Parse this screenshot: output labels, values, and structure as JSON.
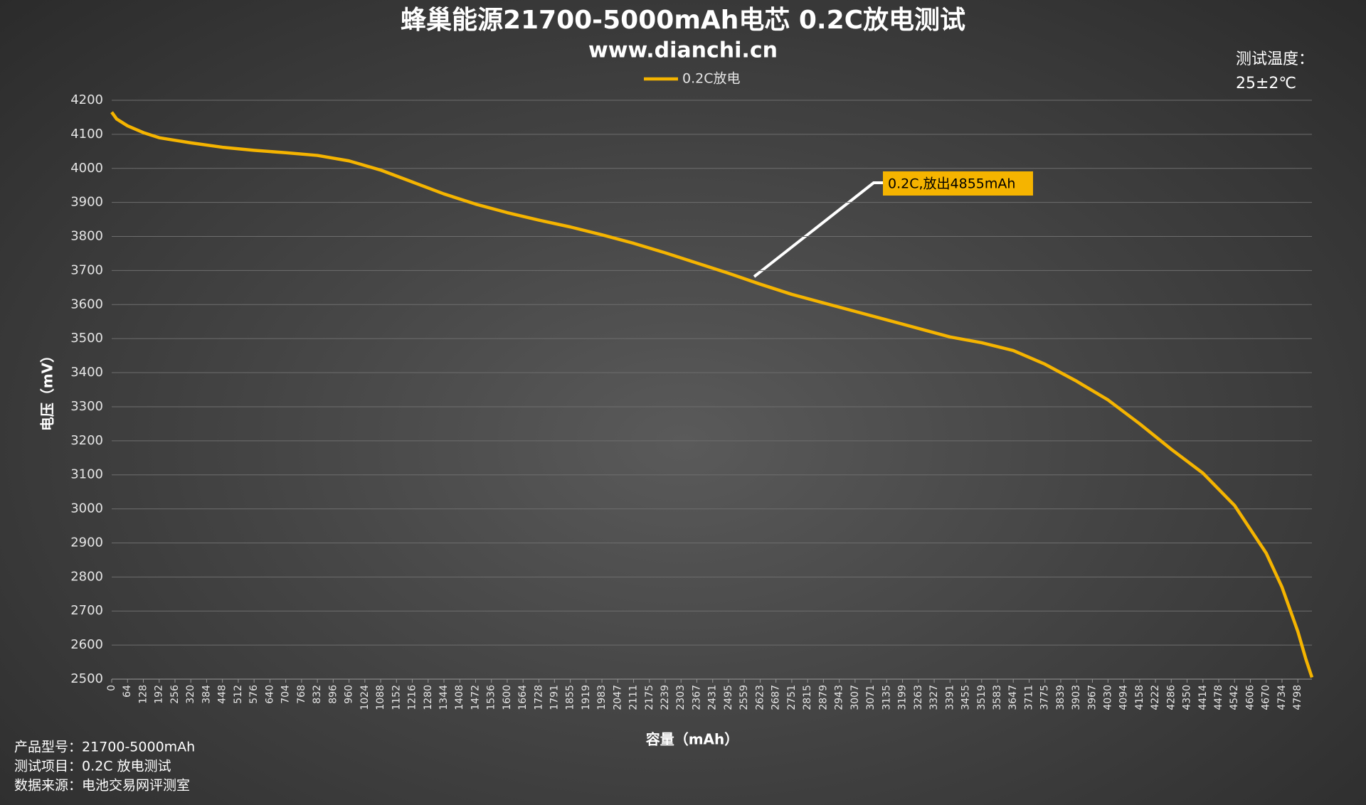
{
  "chart_data": {
    "type": "line",
    "title": "蜂巢能源21700-5000mAh电芯 0.2C放电测试",
    "subtitle": "www.dianchi.cn",
    "temperature_label": "测试温度：",
    "temperature_value": "25±2℃",
    "y_label": "电压（mV）",
    "x_label": "容量（mAh）",
    "annotation": "0.2C,放出4855mAh",
    "notes": [
      "产品型号：21700-5000mAh",
      "测试项目：0.2C 放电测试",
      "数据来源：电池交易网评测室"
    ],
    "legend": "top",
    "grid": true,
    "x": [
      0,
      20,
      64,
      128,
      192,
      320,
      448,
      576,
      704,
      832,
      960,
      1088,
      1216,
      1344,
      1472,
      1600,
      1728,
      1855,
      1983,
      2111,
      2239,
      2367,
      2495,
      2623,
      2751,
      2879,
      3007,
      3135,
      3263,
      3391,
      3519,
      3647,
      3775,
      3903,
      4030,
      4158,
      4286,
      4414,
      4542,
      4670,
      4734,
      4798,
      4830,
      4855
    ],
    "series": [
      {
        "name": "0.2C放电",
        "color": "#f5b400",
        "values": [
          4165,
          4145,
          4125,
          4105,
          4090,
          4075,
          4062,
          4053,
          4046,
          4038,
          4022,
          3995,
          3960,
          3925,
          3895,
          3870,
          3848,
          3828,
          3805,
          3780,
          3752,
          3722,
          3692,
          3660,
          3630,
          3605,
          3580,
          3555,
          3530,
          3505,
          3488,
          3465,
          3425,
          3375,
          3320,
          3250,
          3175,
          3105,
          3010,
          2870,
          2770,
          2640,
          2560,
          2505
        ]
      }
    ],
    "xlim": [
      0,
      4855
    ],
    "xticks": [
      0,
      64,
      128,
      192,
      256,
      320,
      384,
      448,
      512,
      576,
      640,
      704,
      768,
      832,
      896,
      960,
      1024,
      1088,
      1152,
      1216,
      1280,
      1344,
      1408,
      1472,
      1536,
      1600,
      1664,
      1728,
      1791,
      1855,
      1919,
      1983,
      2047,
      2111,
      2175,
      2239,
      2303,
      2367,
      2431,
      2495,
      2559,
      2623,
      2687,
      2751,
      2815,
      2879,
      2943,
      3007,
      3071,
      3135,
      3199,
      3263,
      3327,
      3391,
      3455,
      3519,
      3583,
      3647,
      3711,
      3775,
      3839,
      3903,
      3967,
      4030,
      4094,
      4158,
      4222,
      4286,
      4350,
      4414,
      4478,
      4542,
      4606,
      4670,
      4734,
      4798
    ],
    "ylim": [
      2500,
      4200
    ],
    "yticks": [
      2500,
      2600,
      2700,
      2800,
      2900,
      3000,
      3100,
      3200,
      3300,
      3400,
      3500,
      3600,
      3700,
      3800,
      3900,
      4000,
      4100,
      4200
    ]
  }
}
